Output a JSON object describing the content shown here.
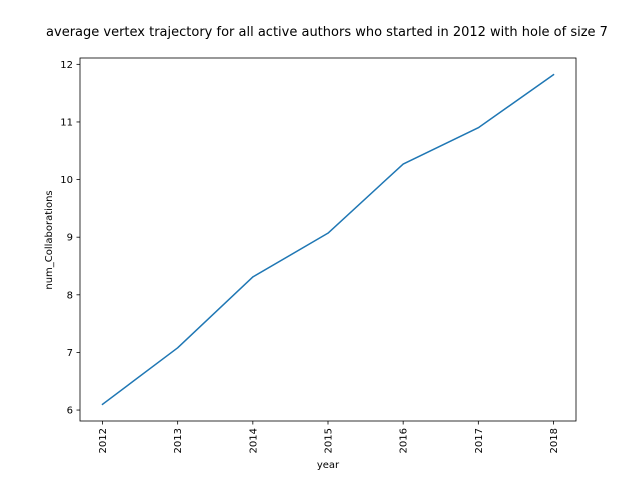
{
  "chart_data": {
    "type": "line",
    "title": "average vertex trajectory for all active authors who started in 2012 with hole of size 7",
    "xlabel": "year",
    "ylabel": "num_Collaborations",
    "x": [
      "2012",
      "2013",
      "2014",
      "2015",
      "2016",
      "2017",
      "2018"
    ],
    "series": [
      {
        "values": [
          6.1,
          7.08,
          8.31,
          9.07,
          10.27,
          10.9,
          11.82
        ],
        "color": "#1f77b4"
      }
    ],
    "ylim": [
      5.81,
      12.11
    ],
    "yticks": [
      6,
      7,
      8,
      9,
      10,
      11,
      12
    ],
    "xtick_rotation": "vertical",
    "grid": false,
    "legend": "none"
  }
}
